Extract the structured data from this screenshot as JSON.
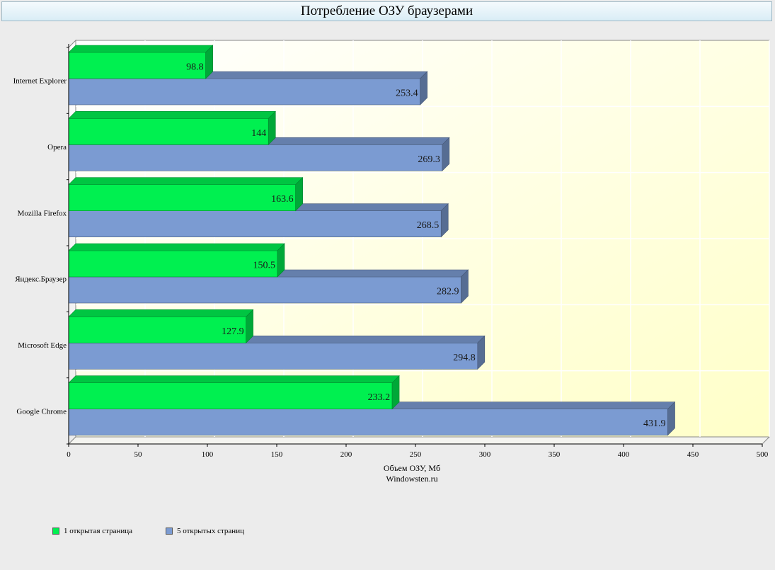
{
  "chart_data": {
    "type": "bar",
    "orientation": "horizontal",
    "title": "Потребление ОЗУ браузерами",
    "xlabel": "Объем ОЗУ, Мб",
    "subtitle": "Windowsten.ru",
    "categories": [
      "Internet Explorer",
      "Opera",
      "Mozilla Firefox",
      "Яндекс.Браузер",
      "Microsoft Edge",
      "Google Chrome"
    ],
    "series": [
      {
        "name": "1 открытая страница",
        "color": "#00f050",
        "values": [
          98.8,
          144,
          163.6,
          150.5,
          127.9,
          233.2
        ]
      },
      {
        "name": "5 открытых страниц",
        "color": "#7b9bd2",
        "values": [
          253.4,
          269.3,
          268.5,
          282.9,
          294.8,
          431.9
        ]
      }
    ],
    "value_labels": [
      [
        "98.8",
        "144",
        "163.6",
        "150.5",
        "127.9",
        "233.2"
      ],
      [
        "253.4",
        "269.3",
        "268.5",
        "282.9",
        "294.8",
        "431.9"
      ]
    ],
    "xlim": [
      0,
      500
    ],
    "xticks": [
      0,
      50,
      100,
      150,
      200,
      250,
      300,
      350,
      400,
      450,
      500
    ],
    "xtick_labels": [
      "0",
      "50",
      "100",
      "150",
      "200",
      "250",
      "300",
      "350",
      "400",
      "450",
      "500"
    ],
    "grid": true,
    "legend": "bottom-left"
  }
}
